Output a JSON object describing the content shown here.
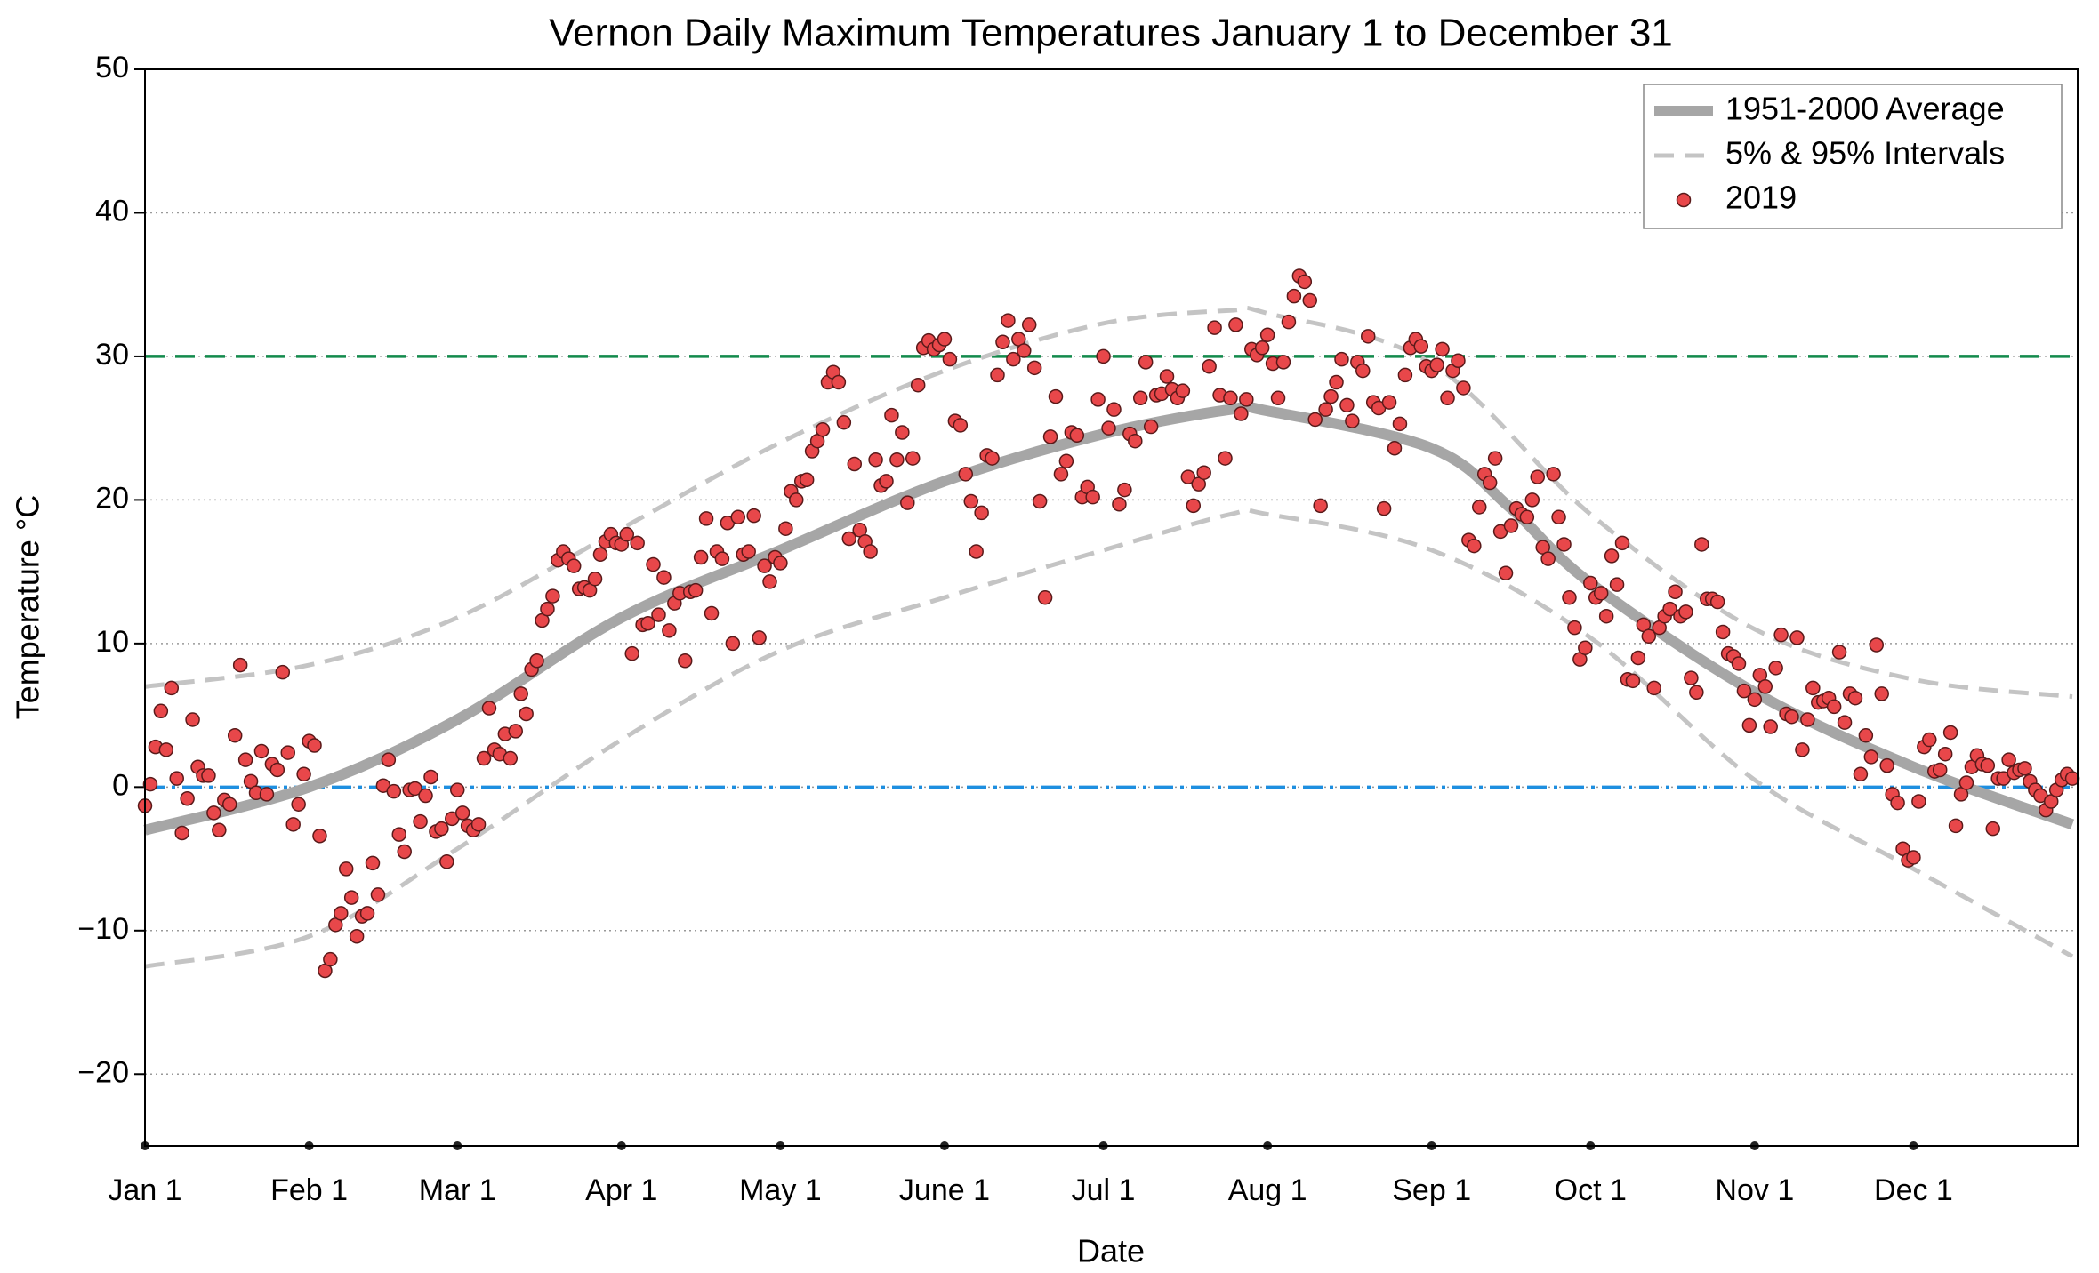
{
  "chart_data": {
    "type": "scatter",
    "title": "Vernon Daily Maximum Temperatures January 1 to December 31",
    "xlabel": "Date",
    "ylabel": "Temperature °C",
    "xlim": [
      0,
      365
    ],
    "ylim": [
      -25,
      50
    ],
    "xticks": [
      {
        "value": 0,
        "label": "Jan 1"
      },
      {
        "value": 31,
        "label": "Feb 1"
      },
      {
        "value": 59,
        "label": "Mar 1"
      },
      {
        "value": 90,
        "label": "Apr 1"
      },
      {
        "value": 120,
        "label": "May 1"
      },
      {
        "value": 151,
        "label": "June 1"
      },
      {
        "value": 181,
        "label": "Jul 1"
      },
      {
        "value": 212,
        "label": "Aug 1"
      },
      {
        "value": 243,
        "label": "Sep 1"
      },
      {
        "value": 273,
        "label": "Oct 1"
      },
      {
        "value": 304,
        "label": "Nov 1"
      },
      {
        "value": 334,
        "label": "Dec 1"
      }
    ],
    "yticks": [
      {
        "value": -20,
        "label": "−20"
      },
      {
        "value": -10,
        "label": "−10"
      },
      0,
      10,
      20,
      30,
      40,
      50
    ],
    "grid": true,
    "legend": "upper right",
    "hlines": [
      {
        "value": 30,
        "color": "#138a4c",
        "style": "dashed"
      },
      {
        "value": 0,
        "color": "#1e8fe0",
        "style": "dashdot"
      }
    ],
    "series": [
      {
        "name": "1951-2000 Average",
        "kind": "line",
        "style": "solid",
        "color": "#a6a6a6",
        "x": [
          0,
          31,
          59,
          90,
          120,
          151,
          181,
          205,
          212,
          243,
          258,
          273,
          304,
          334,
          364
        ],
        "values": [
          -3,
          0,
          4.7,
          11.8,
          16.5,
          21.3,
          24.6,
          26.3,
          26.2,
          23.6,
          19.4,
          14.2,
          6.6,
          1.4,
          -2.6
        ]
      },
      {
        "name": "5% & 95% Intervals",
        "kind": "line",
        "style": "dashed",
        "color": "#c4c4c4",
        "x": [
          0,
          31,
          59,
          90,
          120,
          151,
          181,
          205,
          212,
          243,
          273,
          304,
          334,
          364
        ],
        "values": [
          7,
          8.5,
          11.8,
          18,
          24,
          29,
          32.3,
          33.2,
          33,
          29.5,
          19,
          11,
          7.5,
          6.3
        ],
        "lower": [
          -12.5,
          -10.4,
          -4.3,
          3.3,
          9.5,
          13.2,
          16.5,
          19,
          19,
          16.5,
          10.4,
          0.5,
          -5.7,
          -11.8
        ]
      },
      {
        "name": "2019",
        "kind": "points",
        "color": "#e8474a",
        "x": [
          0,
          1,
          2,
          3,
          4,
          5,
          6,
          7,
          8,
          9,
          10,
          11,
          12,
          13,
          14,
          15,
          16,
          17,
          18,
          19,
          20,
          21,
          22,
          23,
          24,
          25,
          26,
          27,
          28,
          29,
          30,
          31,
          32,
          33,
          34,
          35,
          36,
          37,
          38,
          39,
          40,
          41,
          42,
          43,
          44,
          45,
          46,
          47,
          48,
          49,
          50,
          51,
          52,
          53,
          54,
          55,
          56,
          57,
          58,
          59,
          60,
          61,
          62,
          63,
          64,
          65,
          66,
          67,
          68,
          69,
          70,
          71,
          72,
          73,
          74,
          75,
          76,
          77,
          78,
          79,
          80,
          81,
          82,
          83,
          84,
          85,
          86,
          87,
          88,
          89,
          90,
          91,
          92,
          93,
          94,
          95,
          96,
          97,
          98,
          99,
          100,
          101,
          102,
          103,
          104,
          105,
          106,
          107,
          108,
          109,
          110,
          111,
          112,
          113,
          114,
          115,
          116,
          117,
          118,
          119,
          120,
          121,
          122,
          123,
          124,
          125,
          126,
          127,
          128,
          129,
          130,
          131,
          132,
          133,
          134,
          135,
          136,
          137,
          138,
          139,
          140,
          141,
          142,
          143,
          144,
          145,
          146,
          147,
          148,
          149,
          150,
          151,
          152,
          153,
          154,
          155,
          156,
          157,
          158,
          159,
          160,
          161,
          162,
          163,
          164,
          165,
          166,
          167,
          168,
          169,
          170,
          171,
          172,
          173,
          174,
          175,
          176,
          177,
          178,
          179,
          180,
          181,
          182,
          183,
          184,
          185,
          186,
          187,
          188,
          189,
          190,
          191,
          192,
          193,
          194,
          195,
          196,
          197,
          198,
          199,
          200,
          201,
          202,
          203,
          204,
          205,
          206,
          207,
          208,
          209,
          210,
          211,
          212,
          213,
          214,
          215,
          216,
          217,
          218,
          219,
          220,
          221,
          222,
          223,
          224,
          225,
          226,
          227,
          228,
          229,
          230,
          231,
          232,
          233,
          234,
          235,
          236,
          237,
          238,
          239,
          240,
          241,
          242,
          243,
          244,
          245,
          246,
          247,
          248,
          249,
          250,
          251,
          252,
          253,
          254,
          255,
          256,
          257,
          258,
          259,
          260,
          261,
          262,
          263,
          264,
          265,
          266,
          267,
          268,
          269,
          270,
          271,
          272,
          273,
          274,
          275,
          276,
          277,
          278,
          279,
          280,
          281,
          282,
          283,
          284,
          285,
          286,
          287,
          288,
          289,
          290,
          291,
          292,
          293,
          294,
          295,
          296,
          297,
          298,
          299,
          300,
          301,
          302,
          303,
          304,
          305,
          306,
          307,
          308,
          309,
          310,
          311,
          312,
          313,
          314,
          315,
          316,
          317,
          318,
          319,
          320,
          321,
          322,
          323,
          324,
          325,
          326,
          327,
          328,
          329,
          330,
          331,
          332,
          333,
          334,
          335,
          336,
          337,
          338,
          339,
          340,
          341,
          342,
          343,
          344,
          345,
          346,
          347,
          348,
          349,
          350,
          351,
          352,
          353,
          354,
          355,
          356,
          357,
          358,
          359,
          360,
          361,
          362,
          363,
          364
        ],
        "values": [
          -1.3,
          0.2,
          2.8,
          5.3,
          2.6,
          6.9,
          0.6,
          -3.2,
          -0.8,
          4.7,
          1.4,
          0.8,
          0.8,
          -1.8,
          -3,
          -0.9,
          -1.2,
          3.6,
          8.5,
          1.9,
          0.4,
          -0.4,
          2.5,
          -0.5,
          1.6,
          1.2,
          8,
          2.4,
          -2.6,
          -1.2,
          0.9,
          3.2,
          2.9,
          -3.4,
          -12.8,
          -12,
          -9.6,
          -8.8,
          -5.7,
          -7.7,
          -10.4,
          -9,
          -8.8,
          -5.3,
          -7.5,
          0.1,
          1.9,
          -0.3,
          -3.3,
          -4.5,
          -0.2,
          -0.1,
          -2.4,
          -0.6,
          0.7,
          -3.1,
          -2.9,
          -5.2,
          -2.2,
          -0.2,
          -1.8,
          -2.7,
          -3,
          -2.6,
          2,
          5.5,
          2.6,
          2.3,
          3.7,
          2,
          3.9,
          6.5,
          5.1,
          8.2,
          8.8,
          11.6,
          12.4,
          13.3,
          15.8,
          16.4,
          15.9,
          15.4,
          13.8,
          13.9,
          13.7,
          14.5,
          16.2,
          17.1,
          17.6,
          17,
          16.9,
          17.6,
          9.3,
          17,
          11.3,
          11.4,
          15.5,
          12,
          14.6,
          10.9,
          12.8,
          13.5,
          8.8,
          13.6,
          13.7,
          16,
          18.7,
          12.1,
          16.4,
          15.9,
          18.4,
          10,
          18.8,
          16.2,
          16.4,
          18.9,
          10.4,
          15.4,
          14.3,
          16,
          15.6,
          18,
          20.6,
          20,
          21.3,
          21.4,
          23.4,
          24.1,
          24.9,
          28.2,
          28.9,
          28.2,
          25.4,
          17.3,
          22.5,
          17.9,
          17.1,
          16.4,
          22.8,
          21,
          21.3,
          25.9,
          22.8,
          24.7,
          19.8,
          22.9,
          28,
          30.6,
          31.1,
          30.5,
          30.8,
          31.2,
          29.8,
          25.5,
          25.2,
          21.8,
          19.9,
          16.4,
          19.1,
          23.1,
          22.9,
          28.7,
          31,
          32.5,
          29.8,
          31.2,
          30.4,
          32.2,
          29.2,
          19.9,
          13.2,
          24.4,
          27.2,
          21.8,
          22.7,
          24.7,
          24.5,
          20.2,
          20.9,
          20.2,
          27,
          30,
          25,
          26.3,
          19.7,
          20.7,
          24.6,
          24.1,
          27.1,
          29.6,
          25.1,
          27.3,
          27.4,
          28.6,
          27.7,
          27.1,
          27.6,
          21.6,
          19.6,
          21.1,
          21.9,
          29.3,
          32,
          27.3,
          22.9,
          27.1,
          32.2,
          26,
          27,
          30.5,
          30.1,
          30.6,
          31.5,
          29.5,
          27.1,
          29.6,
          32.4,
          34.2,
          35.6,
          35.2,
          33.9,
          25.6,
          19.6,
          26.3,
          27.2,
          28.2,
          29.8,
          26.6,
          25.5,
          29.6,
          29,
          31.4,
          26.8,
          26.4,
          19.4,
          26.8,
          23.6,
          25.3,
          28.7,
          30.6,
          31.2,
          30.7,
          29.3,
          29,
          29.4,
          30.5,
          27.1,
          29,
          29.7,
          27.8,
          17.2,
          16.8,
          19.5,
          21.8,
          21.2,
          22.9,
          17.8,
          14.9,
          18.2,
          19.4,
          19,
          18.8,
          20,
          21.6,
          16.7,
          15.9,
          21.8,
          18.8,
          16.9,
          13.2,
          11.1,
          8.9,
          9.7,
          14.2,
          13.2,
          13.5,
          11.9,
          16.1,
          14.1,
          17,
          7.5,
          7.4,
          9,
          11.3,
          10.5,
          6.9,
          11.1,
          11.9,
          12.4,
          13.6,
          11.9,
          12.2,
          7.6,
          6.6,
          16.9,
          13.1,
          13.1,
          12.9,
          10.8,
          9.3,
          9.1,
          8.6,
          6.7,
          4.3,
          6.1,
          7.8,
          7,
          4.2,
          8.3,
          10.6,
          5.1,
          4.9,
          10.4,
          2.6,
          4.7,
          6.9,
          5.9,
          6,
          6.2,
          5.6,
          9.4,
          4.5,
          6.5,
          6.2,
          0.9,
          3.6,
          2.1,
          9.9,
          6.5,
          1.5,
          -0.5,
          -1.1,
          -4.3,
          -5.1,
          -4.9,
          -1,
          2.8,
          3.3,
          1.1,
          1.2,
          2.3,
          3.8,
          -2.7,
          -0.5,
          0.3,
          1.4,
          2.2,
          1.6,
          1.5,
          -2.9,
          0.6,
          0.6,
          1.9,
          1,
          1.2,
          1.3,
          0.4,
          -0.2,
          -0.6,
          -1.6,
          -1,
          -0.2,
          0.5,
          0.9,
          0.6
        ]
      }
    ]
  }
}
